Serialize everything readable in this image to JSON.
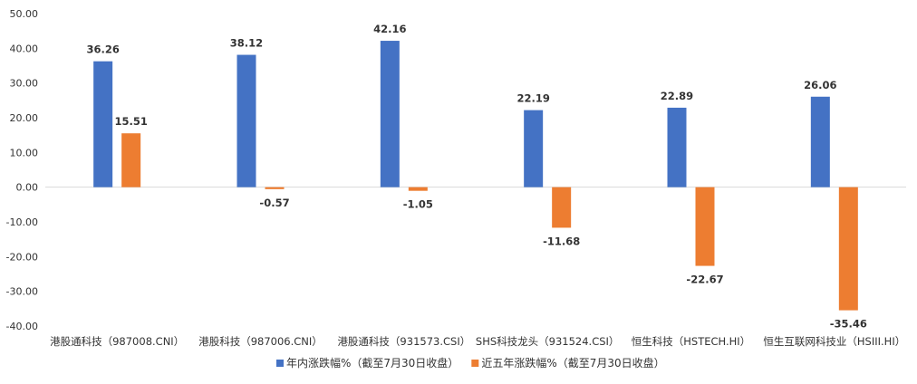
{
  "chart_data": {
    "type": "bar",
    "categories": [
      "港股通科技（987008.CNI）",
      "港股科技（987006.CNI）",
      "港股通科技（931573.CSI）",
      "SHS科技龙头（931524.CSI）",
      "恒生科技（HSTECH.HI）",
      "恒生互联网科技业（HSIII.HI）"
    ],
    "series": [
      {
        "name": "年内涨跌幅%（截至7月30日收盘）",
        "color": "#4472C4",
        "values": [
          36.26,
          38.12,
          42.16,
          22.19,
          22.89,
          26.06
        ],
        "labels": [
          "36.26",
          "38.12",
          "42.16",
          "22.19",
          "22.89",
          "26.06"
        ]
      },
      {
        "name": "近五年涨跌幅%（截至7月30日收盘）",
        "color": "#ED7D31",
        "values": [
          15.51,
          -0.57,
          -1.05,
          -11.68,
          -22.67,
          -35.46
        ],
        "labels": [
          "15.51",
          "-0.57",
          "-1.05",
          "-11.68",
          "-22.67",
          "-35.46"
        ]
      }
    ],
    "ylim": [
      -40,
      50
    ],
    "yticks": [
      "50.00",
      "40.00",
      "30.00",
      "20.00",
      "10.00",
      "0.00",
      "-10.00",
      "-20.00",
      "-30.00",
      "-40.00"
    ],
    "ytick_values": [
      50,
      40,
      30,
      20,
      10,
      0,
      -10,
      -20,
      -30,
      -40
    ],
    "grid": false,
    "legend_position": "bottom",
    "title": "",
    "xlabel": "",
    "ylabel": ""
  }
}
